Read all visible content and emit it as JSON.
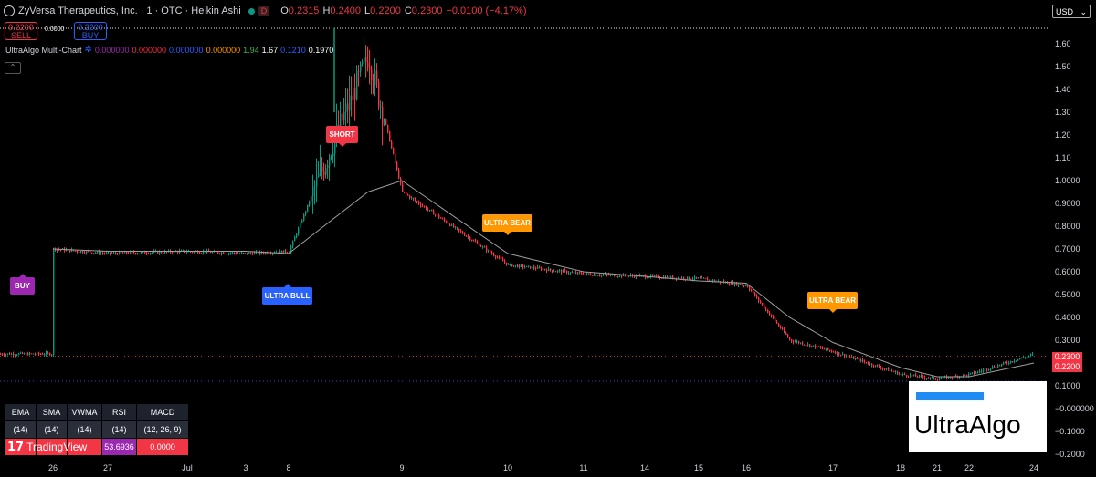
{
  "header": {
    "title": "ZyVersa Therapeutics, Inc. · 1 · OTC · Heikin Ashi",
    "interval_badge": "D",
    "o_label": "O",
    "o_val": "0.2315",
    "h_label": "H",
    "h_val": "0.2400",
    "l_label": "L",
    "l_val": "0.2200",
    "c_label": "C",
    "c_val": "0.2300",
    "change": "−0.0100 (−4.17%)"
  },
  "trade": {
    "sell_price": "0.2200",
    "sell_label": "SELL",
    "buy_price": "0.2200",
    "buy_label": "BUY",
    "spread": "0.0000"
  },
  "indicator": {
    "name": "UltraAlgo Multi-Chart",
    "values": [
      {
        "text": "0.000000",
        "color": "#9c27b0"
      },
      {
        "text": "0.000000",
        "color": "#f23645"
      },
      {
        "text": "0.000000",
        "color": "#2962ff"
      },
      {
        "text": "0.000000",
        "color": "#ff9800"
      },
      {
        "text": "1.94",
        "color": "#4caf50"
      },
      {
        "text": "1.67",
        "color": "#ffffff"
      },
      {
        "text": "0.1210",
        "color": "#2962ff"
      },
      {
        "text": "0.1970",
        "color": "#ffffff"
      }
    ]
  },
  "currency": "USD",
  "price_tags": {
    "last": "0.2300",
    "bid": "0.2200"
  },
  "signals": [
    {
      "label": "BUY",
      "dir": "up"
    },
    {
      "label": "ULTRA BULL",
      "dir": "up"
    },
    {
      "label": "SHORT",
      "dir": "dn"
    },
    {
      "label": "ULTRA BEAR",
      "dir": "dn"
    },
    {
      "label": "ULTRA BEAR",
      "dir": "dn"
    }
  ],
  "table": {
    "headers": [
      "EMA",
      "SMA",
      "VWMA",
      "RSI",
      "MACD"
    ],
    "params": [
      "(14)",
      "(14)",
      "(14)",
      "(14)",
      "(12, 26, 9)"
    ],
    "values": [
      "",
      "",
      "",
      "53.6936",
      "0.0000"
    ],
    "value_colors": [
      "#f23645",
      "#f23645",
      "#f23645",
      "#9c27b0",
      "#f23645"
    ]
  },
  "branding": {
    "tradingview": "TradingView",
    "ultraalgo": "UltraAlgo"
  },
  "colors": {
    "up": "#089981",
    "down": "#f23645",
    "ma": "#9e9e9e",
    "bg": "#000000"
  },
  "chart_data": {
    "type": "line",
    "title": "ZyVersa Therapeutics, Inc. · 1 · OTC · Heikin Ashi",
    "x_tick_labels": [
      "26",
      "27",
      "Jul",
      "3",
      "8",
      "9",
      "10",
      "11",
      "14",
      "15",
      "16",
      "17",
      "18",
      "21",
      "22",
      "24"
    ],
    "y_tick_labels": [
      "1.60",
      "1.50",
      "1.40",
      "1.30",
      "1.20",
      "1.10",
      "1.0000",
      "0.9000",
      "0.8000",
      "0.7000",
      "0.6000",
      "0.5000",
      "0.4000",
      "0.3000",
      "0.2000",
      "0.1000",
      "−0.000000",
      "−0.1000",
      "−0.2000"
    ],
    "ylim": [
      -0.22,
      1.67
    ],
    "series": [
      {
        "name": "Heikin Ashi close",
        "x": [
          "26",
          "27",
          "Jul",
          "3",
          "8",
          "8.7",
          "9",
          "10",
          "11",
          "14",
          "15",
          "16",
          "16.5",
          "17",
          "18",
          "21",
          "22",
          "24"
        ],
        "values": [
          0.7,
          0.68,
          0.69,
          0.68,
          0.69,
          1.55,
          0.95,
          0.63,
          0.59,
          0.58,
          0.57,
          0.54,
          0.3,
          0.25,
          0.15,
          0.13,
          0.15,
          0.24
        ]
      },
      {
        "name": "Moving average",
        "x": [
          "26",
          "27",
          "Jul",
          "3",
          "8",
          "8.7",
          "9",
          "10",
          "11",
          "14",
          "15",
          "16",
          "16.5",
          "17",
          "18",
          "21",
          "22",
          "24"
        ],
        "values": [
          0.7,
          0.69,
          0.69,
          0.69,
          0.68,
          0.95,
          1.0,
          0.68,
          0.6,
          0.58,
          0.56,
          0.55,
          0.4,
          0.29,
          0.18,
          0.14,
          0.14,
          0.2
        ]
      }
    ],
    "reference_lines": [
      {
        "value": 1.67,
        "color": "#ffffff"
      },
      {
        "value": 0.23,
        "color": "#f23645"
      },
      {
        "value": 0.12,
        "color": "#2962ff"
      }
    ],
    "grid": false
  }
}
